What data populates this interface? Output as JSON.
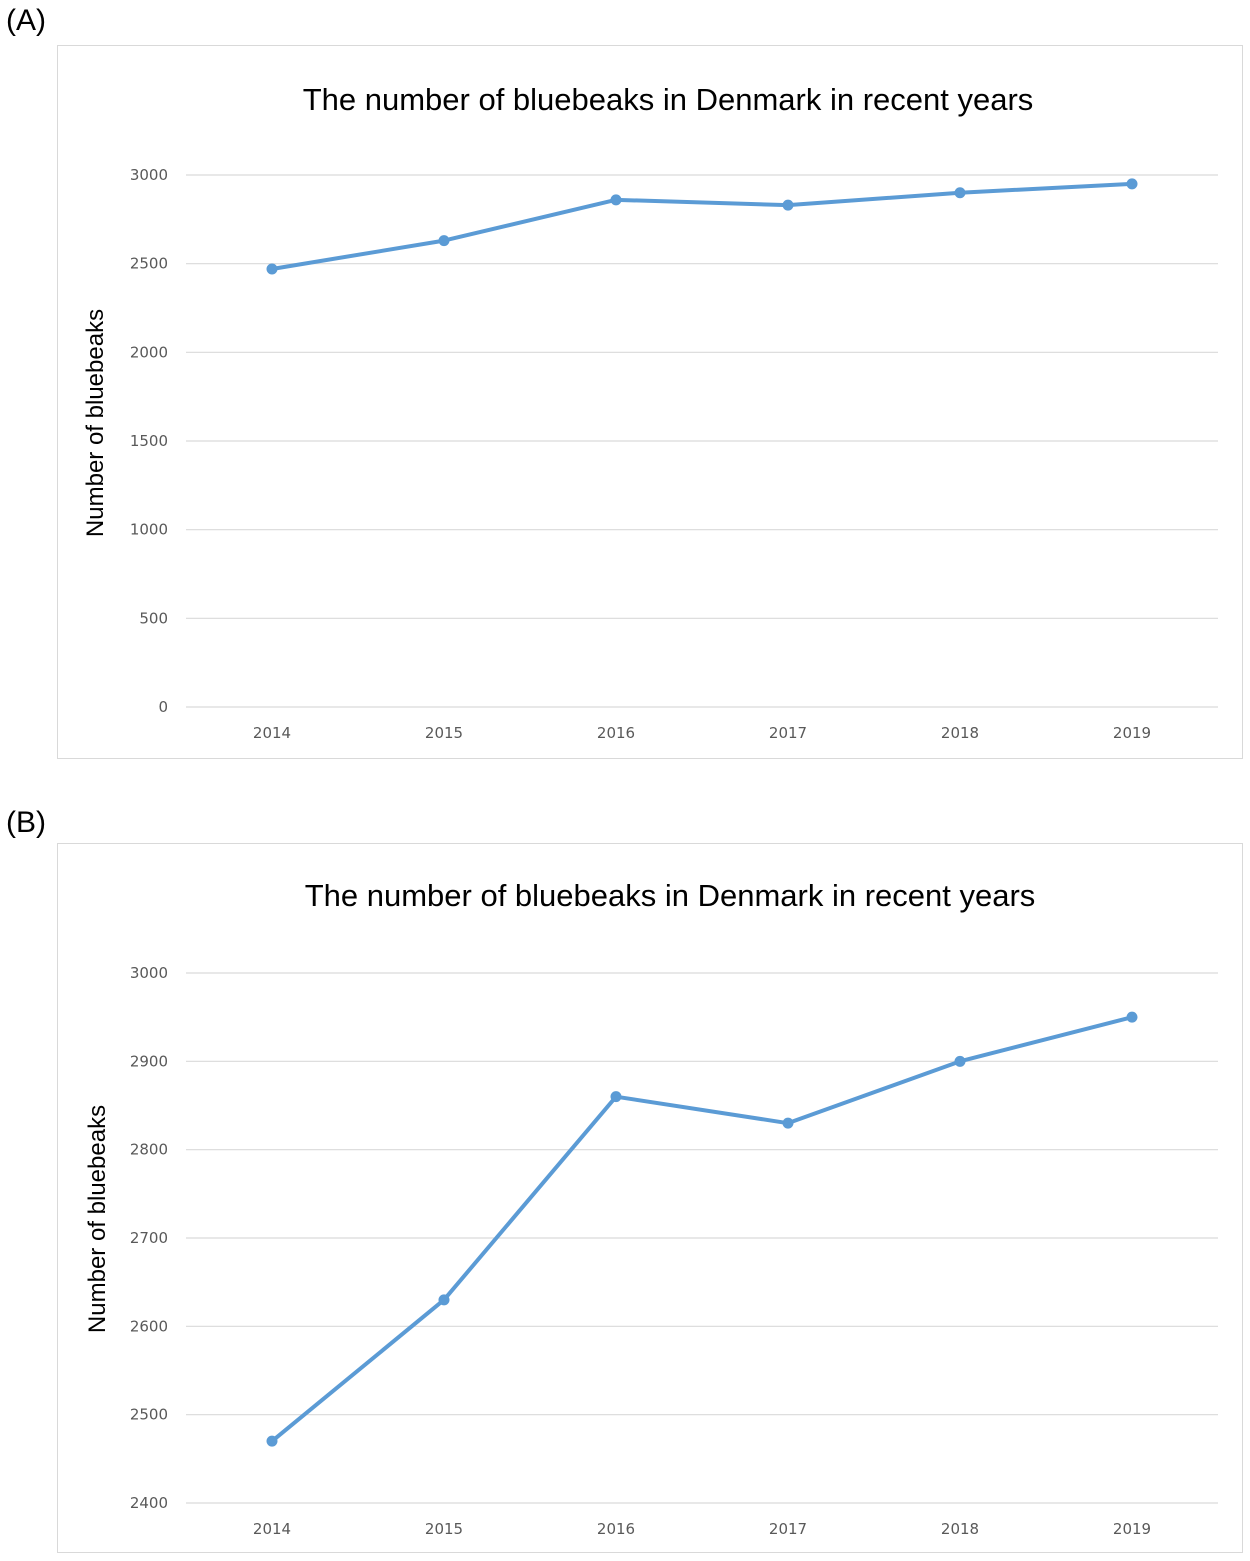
{
  "panels": [
    {
      "label": "(A)"
    },
    {
      "label": "(B)"
    }
  ],
  "colors": {
    "series": "#5b9bd5",
    "grid": "#d9d9d9",
    "tick": "#595959"
  },
  "chart_data": [
    {
      "type": "line",
      "title": "The number of bluebeaks in Denmark in recent years",
      "xlabel": "",
      "ylabel": "Number of bluebeaks",
      "categories": [
        "2014",
        "2015",
        "2016",
        "2017",
        "2018",
        "2019"
      ],
      "series": [
        {
          "values": [
            2470,
            2630,
            2860,
            2830,
            2900,
            2950
          ]
        }
      ],
      "ylim": [
        0,
        3000
      ],
      "yticks": [
        0,
        500,
        1000,
        1500,
        2000,
        2500,
        3000
      ],
      "grid": true,
      "legend": "none"
    },
    {
      "type": "line",
      "title": "The number of bluebeaks in Denmark in recent years",
      "xlabel": "",
      "ylabel": "Number of bluebeaks",
      "categories": [
        "2014",
        "2015",
        "2016",
        "2017",
        "2018",
        "2019"
      ],
      "series": [
        {
          "values": [
            2470,
            2630,
            2860,
            2830,
            2900,
            2950
          ]
        }
      ],
      "ylim": [
        2400,
        3000
      ],
      "yticks": [
        2400,
        2500,
        2600,
        2700,
        2800,
        2900,
        3000
      ],
      "grid": true,
      "legend": "none"
    }
  ]
}
